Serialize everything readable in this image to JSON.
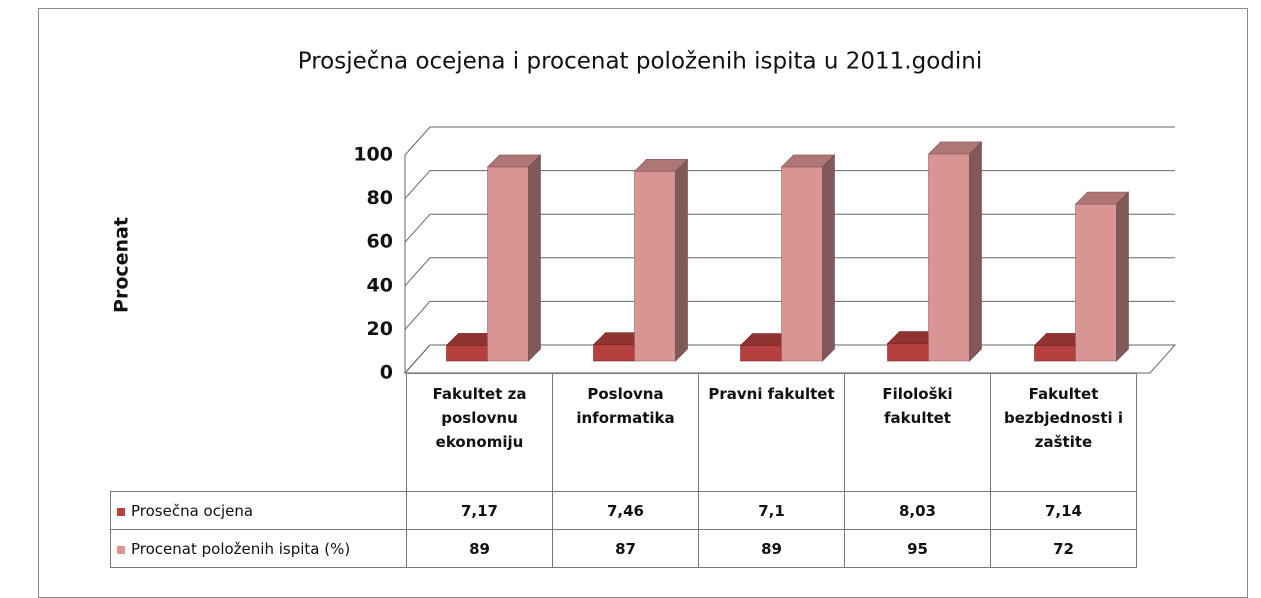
{
  "chart_data": {
    "type": "bar3d",
    "title": "Prosječna ocejena i procenat položenih ispita u 2011.godini",
    "y_label": "Procenat",
    "categories": [
      "Fakultet za poslovnu ekonomiju",
      "Poslovna informatika",
      "Pravni fakultet",
      "Filološki fakultet",
      "Fakultet bezbjednosti i zaštite"
    ],
    "series": [
      {
        "name": "Prosečna ocjena",
        "color": "#b5403d",
        "values": [
          7.17,
          7.46,
          7.1,
          8.03,
          7.14
        ],
        "value_labels": [
          "7,17",
          "7,46",
          "7,1",
          "8,03",
          "7,14"
        ]
      },
      {
        "name": "Procenat položenih ispita (%)",
        "color": "#d99594",
        "values": [
          89,
          87,
          89,
          95,
          72
        ]
      }
    ],
    "ylim": [
      0,
      100
    ],
    "yticks": [
      0,
      20,
      40,
      60,
      80,
      100
    ],
    "grid": true
  }
}
